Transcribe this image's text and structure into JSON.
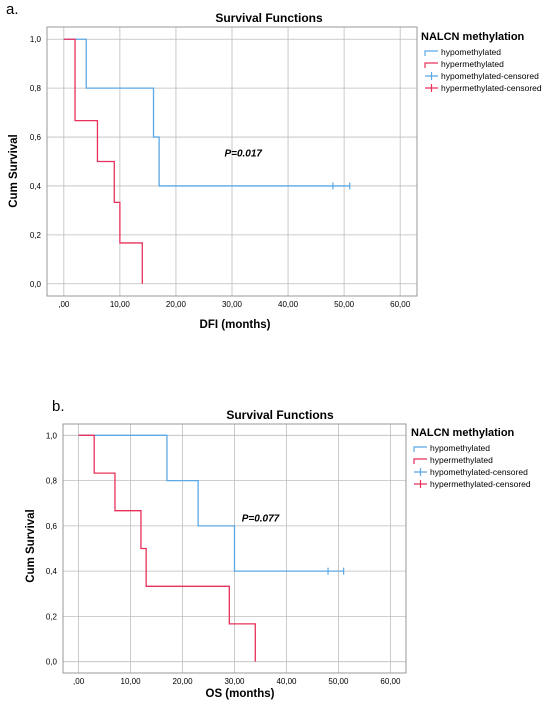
{
  "colors": {
    "hypomethylated": "#5aa8e6",
    "hypermethylated": "#e8305a",
    "grid": "#bdbdbd",
    "frame": "#9a9a9a"
  },
  "chart_data": [
    {
      "panel_label": "a.",
      "type": "line",
      "step": true,
      "title": "Survival Functions",
      "xlabel": "DFI (months)",
      "ylabel": "Cum Survival",
      "xlim": [
        -3,
        63
      ],
      "ylim": [
        -0.05,
        1.05
      ],
      "x_ticks": [
        0,
        10,
        20,
        30,
        40,
        50,
        60
      ],
      "x_tick_labels": [
        ",00",
        "10,00",
        "20,00",
        "30,00",
        "40,00",
        "50,00",
        "60,00"
      ],
      "y_ticks": [
        0,
        0.2,
        0.4,
        0.6,
        0.8,
        1.0
      ],
      "y_tick_labels": [
        "0,0",
        "0,2",
        "0,4",
        "0,6",
        "0,8",
        "1,0"
      ],
      "grid": true,
      "legend_title": "NALCN methylation",
      "legend_placement": "right",
      "legend": [
        "hypomethylated",
        "hypermethylated",
        "hypomethylated-censored",
        "hypermethylated-censored"
      ],
      "annotation": "P=0.017",
      "annotation_at": [
        32,
        0.52
      ],
      "series": [
        {
          "name": "hypomethylated",
          "points": [
            [
              0,
              1.0
            ],
            [
              4,
              0.8
            ],
            [
              16,
              0.6
            ],
            [
              17,
              0.4
            ],
            [
              51,
              0.4
            ]
          ],
          "censored": [
            [
              48,
              0.4
            ],
            [
              51,
              0.4
            ]
          ]
        },
        {
          "name": "hypermethylated",
          "points": [
            [
              0,
              1.0
            ],
            [
              2,
              0.667
            ],
            [
              6,
              0.5
            ],
            [
              9,
              0.333
            ],
            [
              10,
              0.167
            ],
            [
              14,
              0.0
            ]
          ],
          "censored": []
        }
      ]
    },
    {
      "panel_label": "b.",
      "type": "line",
      "step": true,
      "title": "Survival Functions",
      "xlabel": "OS (months)",
      "ylabel": "Cum Survival",
      "xlim": [
        -3,
        63
      ],
      "ylim": [
        -0.05,
        1.05
      ],
      "x_ticks": [
        0,
        10,
        20,
        30,
        40,
        50,
        60
      ],
      "x_tick_labels": [
        ",00",
        "10,00",
        "20,00",
        "30,00",
        "40,00",
        "50,00",
        "60,00"
      ],
      "y_ticks": [
        0,
        0.2,
        0.4,
        0.6,
        0.8,
        1.0
      ],
      "y_tick_labels": [
        "0,0",
        "0,2",
        "0,4",
        "0,6",
        "0,8",
        "1,0"
      ],
      "grid": true,
      "legend_title": "NALCN methylation",
      "legend_placement": "right",
      "legend": [
        "hypomethylated",
        "hypermethylated",
        "hypomethylated-censored",
        "hypermethylated-censored"
      ],
      "annotation": "P=0.077",
      "annotation_at": [
        35,
        0.62
      ],
      "series": [
        {
          "name": "hypomethylated",
          "points": [
            [
              0,
              1.0
            ],
            [
              17,
              0.8
            ],
            [
              23,
              0.6
            ],
            [
              30,
              0.4
            ],
            [
              51,
              0.4
            ]
          ],
          "censored": [
            [
              48,
              0.4
            ],
            [
              51,
              0.4
            ]
          ]
        },
        {
          "name": "hypermethylated",
          "points": [
            [
              0,
              1.0
            ],
            [
              3,
              0.833
            ],
            [
              7,
              0.667
            ],
            [
              12,
              0.5
            ],
            [
              13,
              0.333
            ],
            [
              29,
              0.167
            ],
            [
              34,
              0.0
            ]
          ],
          "censored": []
        }
      ]
    }
  ]
}
